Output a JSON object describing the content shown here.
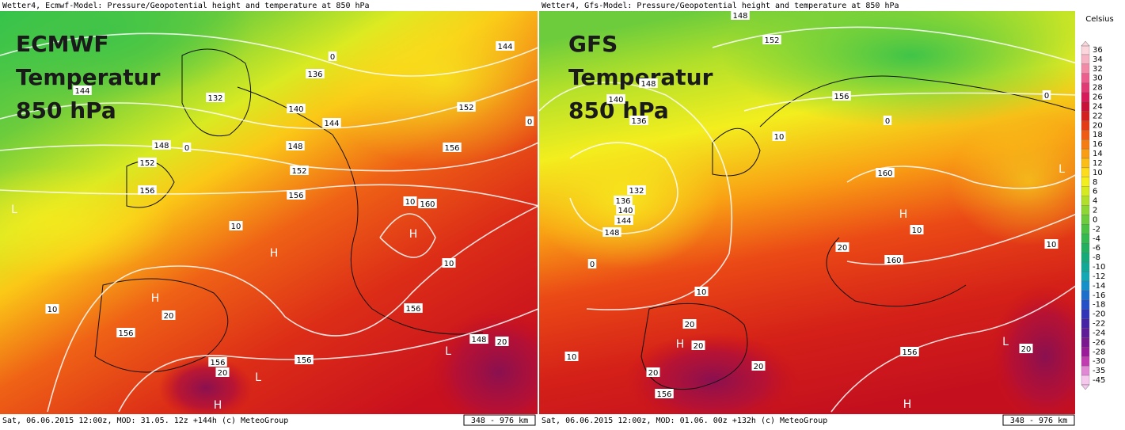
{
  "panels": [
    {
      "header": "Wetter4, Ecmwf-Model: Pressure/Geopotential height and temperature at 850 hPa",
      "title_lines": [
        "ECMWF",
        "Temperatur",
        "850 hPa"
      ],
      "footer": "Sat, 06.06.2015 12:00z, MOD: 31.05. 12z +144h (c) MeteoGroup",
      "scale": "348 - 976 km",
      "contour_labels": [
        144,
        136,
        132,
        140,
        144,
        148,
        152,
        156,
        148,
        152,
        156,
        152,
        156,
        160,
        10,
        10,
        10,
        10,
        156,
        156,
        20,
        148,
        20,
        156,
        156,
        20,
        144,
        0,
        0,
        0
      ],
      "pressure_labels": [
        "H",
        "H",
        "L",
        "L",
        "H",
        "L",
        "H"
      ]
    },
    {
      "header": "Wetter4, Gfs-Model: Pressure/Geopotential height and temperature at 850 hPa",
      "title_lines": [
        "GFS",
        "Temperatur",
        "850 hPa"
      ],
      "footer": "Sat, 06.06.2015 12:00z, MOD: 01.06. 00z +132h (c) MeteoGroup",
      "scale": "348 - 976 km",
      "contour_labels": [
        148,
        152,
        148,
        140,
        136,
        156,
        160,
        132,
        136,
        140,
        144,
        148,
        0,
        0,
        0,
        10,
        10,
        10,
        10,
        10,
        160,
        20,
        20,
        20,
        20,
        20,
        156,
        156,
        20
      ],
      "pressure_labels": [
        "H",
        "H",
        "L",
        "H",
        "L"
      ]
    }
  ],
  "legend": {
    "unit": "Celsius",
    "labels": [
      36,
      34,
      32,
      30,
      28,
      26,
      24,
      22,
      20,
      18,
      16,
      14,
      12,
      10,
      8,
      6,
      4,
      2,
      0,
      -2,
      -4,
      -6,
      -8,
      -10,
      -12,
      -14,
      -16,
      -18,
      -20,
      -22,
      -24,
      -26,
      -28,
      -30,
      -35,
      -45
    ],
    "colors": [
      "#fbd6dc",
      "#f7b4c4",
      "#f28aa8",
      "#ec5f8e",
      "#e23a74",
      "#d8195a",
      "#c8103a",
      "#d41f1f",
      "#e43a16",
      "#ef5a14",
      "#f57c12",
      "#f99d14",
      "#fcbd16",
      "#fddc1c",
      "#f3ee1e",
      "#d6ea20",
      "#b2e02a",
      "#8ed634",
      "#6ccc3c",
      "#4cc244",
      "#34b850",
      "#22b060",
      "#16aa78",
      "#12a896",
      "#12a8b4",
      "#1690c8",
      "#1c70cc",
      "#2450c8",
      "#3034b8",
      "#4424a4",
      "#5e1c98",
      "#7a1890",
      "#9a1c98",
      "#c03cb0",
      "#e088d4",
      "#f6c8ee"
    ]
  }
}
